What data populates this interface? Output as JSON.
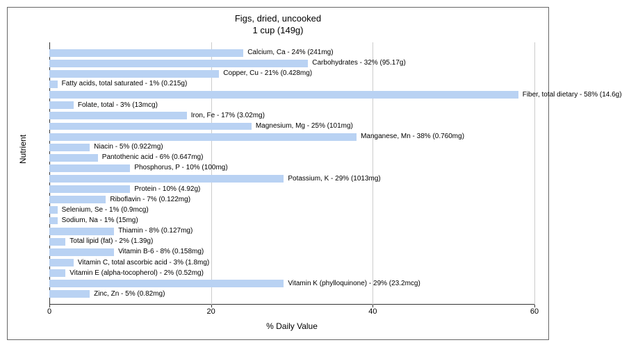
{
  "chart": {
    "type": "bar-horizontal",
    "title_line1": "Figs, dried, uncooked",
    "title_line2": "1 cup (149g)",
    "title_fontsize": 13,
    "xlabel": "% Daily Value",
    "ylabel": "Nutrient",
    "label_fontsize": 12,
    "xlim": [
      0,
      60
    ],
    "xticks": [
      0,
      20,
      40,
      60
    ],
    "background_color": "#ffffff",
    "border_color": "#666666",
    "grid_color": "#cccccc",
    "axis_color": "#333333",
    "bar_color": "#b9d2f3",
    "bar_label_fontsize": 10,
    "tick_label_fontsize": 11,
    "bars": [
      {
        "label": "Calcium, Ca - 24% (241mg)",
        "value": 24
      },
      {
        "label": "Carbohydrates - 32% (95.17g)",
        "value": 32
      },
      {
        "label": "Copper, Cu - 21% (0.428mg)",
        "value": 21
      },
      {
        "label": "Fatty acids, total saturated - 1% (0.215g)",
        "value": 1
      },
      {
        "label": "Fiber, total dietary - 58% (14.6g)",
        "value": 58
      },
      {
        "label": "Folate, total - 3% (13mcg)",
        "value": 3
      },
      {
        "label": "Iron, Fe - 17% (3.02mg)",
        "value": 17
      },
      {
        "label": "Magnesium, Mg - 25% (101mg)",
        "value": 25
      },
      {
        "label": "Manganese, Mn - 38% (0.760mg)",
        "value": 38
      },
      {
        "label": "Niacin - 5% (0.922mg)",
        "value": 5
      },
      {
        "label": "Pantothenic acid - 6% (0.647mg)",
        "value": 6
      },
      {
        "label": "Phosphorus, P - 10% (100mg)",
        "value": 10
      },
      {
        "label": "Potassium, K - 29% (1013mg)",
        "value": 29
      },
      {
        "label": "Protein - 10% (4.92g)",
        "value": 10
      },
      {
        "label": "Riboflavin - 7% (0.122mg)",
        "value": 7
      },
      {
        "label": "Selenium, Se - 1% (0.9mcg)",
        "value": 1
      },
      {
        "label": "Sodium, Na - 1% (15mg)",
        "value": 1
      },
      {
        "label": "Thiamin - 8% (0.127mg)",
        "value": 8
      },
      {
        "label": "Total lipid (fat) - 2% (1.39g)",
        "value": 2
      },
      {
        "label": "Vitamin B-6 - 8% (0.158mg)",
        "value": 8
      },
      {
        "label": "Vitamin C, total ascorbic acid - 3% (1.8mg)",
        "value": 3
      },
      {
        "label": "Vitamin E (alpha-tocopherol) - 2% (0.52mg)",
        "value": 2
      },
      {
        "label": "Vitamin K (phylloquinone) - 29% (23.2mcg)",
        "value": 29
      },
      {
        "label": "Zinc, Zn - 5% (0.82mg)",
        "value": 5
      }
    ]
  }
}
